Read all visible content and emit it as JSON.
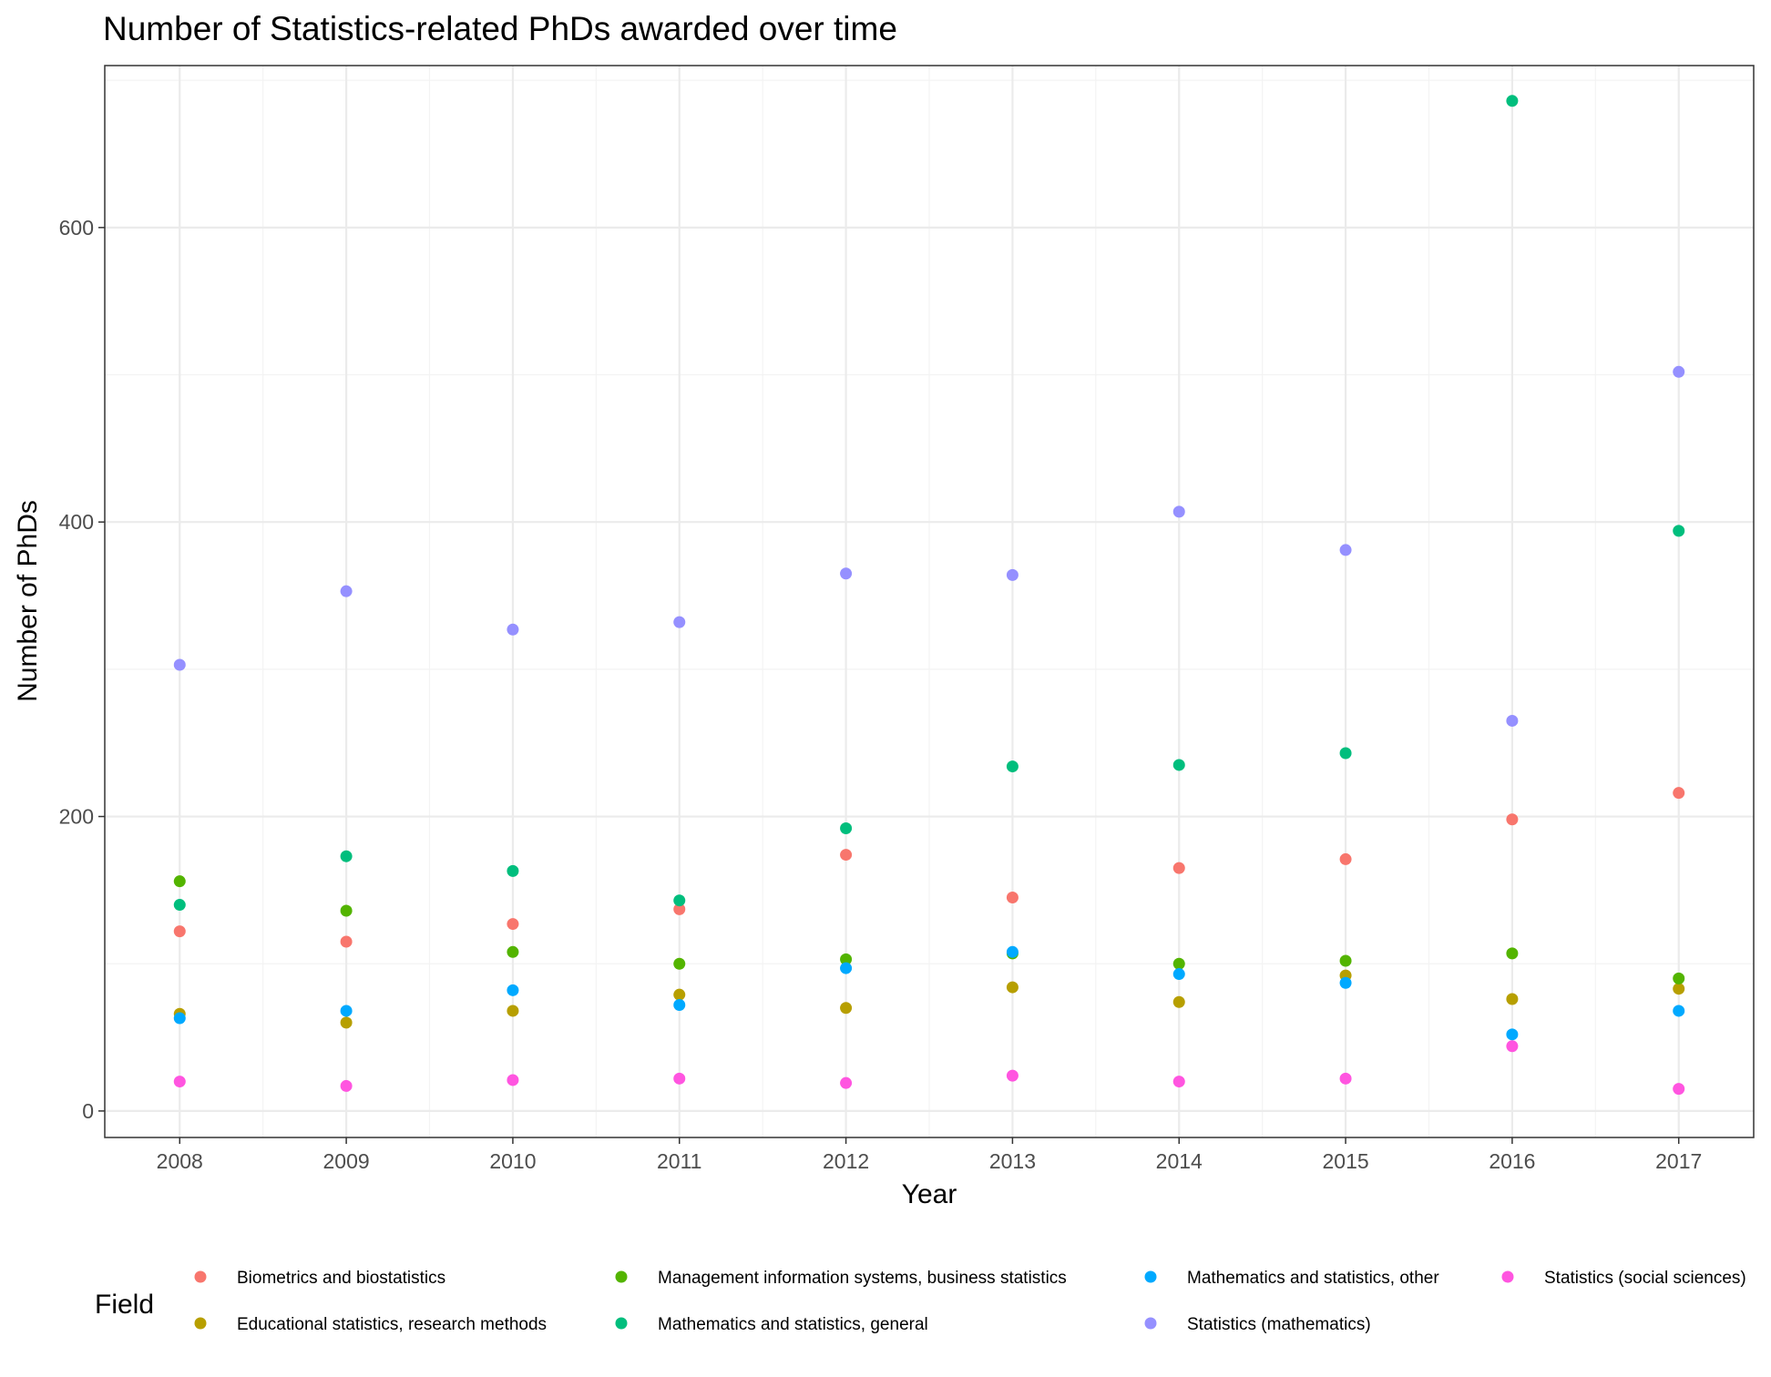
{
  "chart_data": {
    "type": "scatter",
    "title": "Number of Statistics-related PhDs awarded over time",
    "xlabel": "Year",
    "ylabel": "Number of PhDs",
    "x": [
      2008,
      2009,
      2010,
      2011,
      2012,
      2013,
      2014,
      2015,
      2016,
      2017
    ],
    "xlim": [
      2007.55,
      2017.45
    ],
    "ylim": [
      -18,
      710
    ],
    "yticks": [
      0,
      200,
      400,
      600
    ],
    "grid": true,
    "legend": {
      "title": "Field",
      "position": "bottom"
    },
    "series": [
      {
        "name": "Biometrics and biostatistics",
        "color": "#F8766D",
        "values": [
          122,
          115,
          127,
          137,
          174,
          145,
          165,
          171,
          198,
          216
        ]
      },
      {
        "name": "Educational statistics, research methods",
        "color": "#B79F00",
        "values": [
          66,
          60,
          68,
          79,
          70,
          84,
          74,
          92,
          76,
          83
        ]
      },
      {
        "name": "Management information systems, business statistics",
        "color": "#53B400",
        "values": [
          156,
          136,
          108,
          100,
          103,
          107,
          100,
          102,
          107,
          90
        ]
      },
      {
        "name": "Mathematics and statistics, general",
        "color": "#00BE7D",
        "values": [
          140,
          173,
          163,
          143,
          192,
          234,
          235,
          243,
          686,
          394
        ]
      },
      {
        "name": "Mathematics and statistics, other",
        "color": "#00A9FF",
        "values": [
          63,
          68,
          82,
          72,
          97,
          108,
          93,
          87,
          52,
          68
        ]
      },
      {
        "name": "Statistics (mathematics)",
        "color": "#9590FF",
        "values": [
          303,
          353,
          327,
          332,
          365,
          364,
          407,
          381,
          265,
          502
        ]
      },
      {
        "name": "Statistics (social sciences)",
        "color": "#FF55E0",
        "values": [
          20,
          17,
          21,
          22,
          19,
          24,
          20,
          22,
          44,
          15
        ]
      }
    ]
  }
}
